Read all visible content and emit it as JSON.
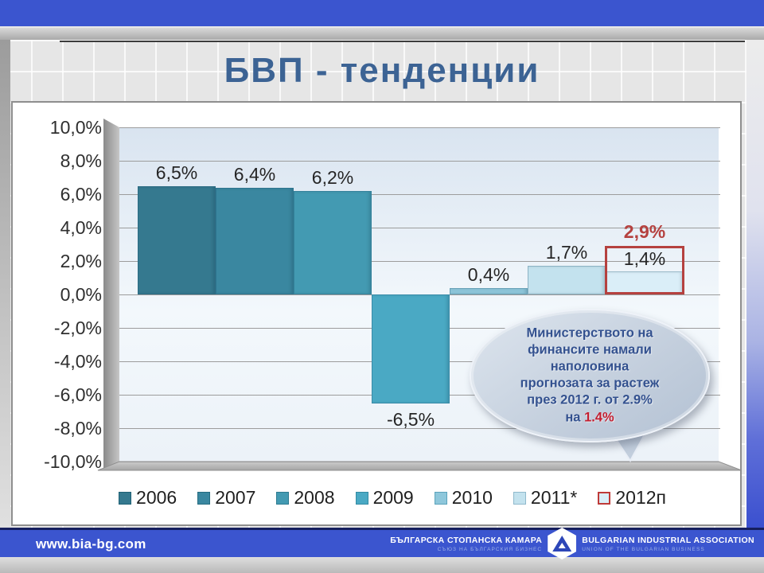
{
  "slide": {
    "title": "БВП - тенденции"
  },
  "chart_data": {
    "type": "bar",
    "title": "БВП - тенденции",
    "categories": [
      "2006",
      "2007",
      "2008",
      "2009",
      "2010",
      "2011*",
      "2012п"
    ],
    "values": [
      6.5,
      6.4,
      6.2,
      -6.5,
      0.4,
      1.7,
      1.4
    ],
    "bar_labels": [
      "6,5%",
      "6,4%",
      "6,2%",
      "-6,5%",
      "0,4%",
      "1,7%",
      ""
    ],
    "bar_colors": [
      "#35798f",
      "#3a87a0",
      "#439ab2",
      "#4aa9c4",
      "#8ec7db",
      "#c3e2ee",
      "#daeef8"
    ],
    "forecast": {
      "category": "2012п",
      "old_value": 2.9,
      "old_label": "2,9%",
      "new_value": 1.4,
      "new_label": "1,4%",
      "box_color": "#b5413f"
    },
    "ylabel": "",
    "xlabel": "",
    "ylim": [
      -10,
      10
    ],
    "ytick_step": 2,
    "ytick_labels": [
      "10,0%",
      "8,0%",
      "6,0%",
      "4,0%",
      "2,0%",
      "0,0%",
      "-2,0%",
      "-4,0%",
      "-6,0%",
      "-8,0%",
      "-10,0%"
    ],
    "grid": true,
    "legend": {
      "position": "bottom",
      "entries": [
        {
          "label": "2006",
          "color": "#35798f",
          "border": "#1f6175"
        },
        {
          "label": "2007",
          "color": "#3a87a0",
          "border": "#256c80"
        },
        {
          "label": "2008",
          "color": "#439ab2",
          "border": "#2d7b90"
        },
        {
          "label": "2009",
          "color": "#4aa9c4",
          "border": "#338ba3"
        },
        {
          "label": "2010",
          "color": "#8ec7db",
          "border": "#5ba3bb"
        },
        {
          "label": "2011*",
          "color": "#c3e2ee",
          "border": "#8fb9cc"
        },
        {
          "label": "2012п",
          "color": "#daeef8",
          "border": "#bf3a38"
        }
      ]
    }
  },
  "callout": {
    "lines": [
      "Министерството на",
      "финансите намали",
      "наполовина",
      "прогнозата за растеж",
      "през 2012 г. от 2.9%",
      "на "
    ],
    "highlight": "1.4%",
    "highlight_color": "#c41e2f"
  },
  "footer": {
    "url": "www.bia-bg.com",
    "org_bg": "БЪЛГАРСКА СТОПАНСКА КАМАРА",
    "org_bg_sub": "СЪЮЗ НА БЪЛГАРСКИЯ БИЗНЕС",
    "org_en": "BULGARIAN INDUSTRIAL ASSOCIATION",
    "org_en_sub": "UNION OF THE BULGARIAN BUSINESS"
  },
  "colors": {
    "top_bar": "#3b55cf",
    "footer_bar": "#3b55cf",
    "title": "#3c6394",
    "accent_red": "#b5413f"
  }
}
